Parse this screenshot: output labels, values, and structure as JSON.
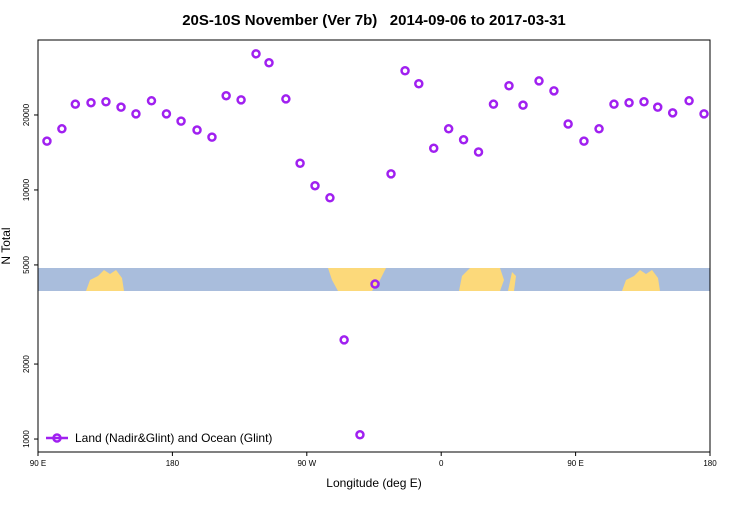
{
  "chart_data": {
    "type": "scatter",
    "title": "20S-10S November (Ver 7b)   2014-09-06 to 2017-03-31",
    "x_label": "Longitude (deg E)",
    "y_label": "N Total",
    "y_log": true,
    "xlim": [
      90,
      540
    ],
    "ylim": [
      887,
      40000
    ],
    "xticks": [
      {
        "value": 90,
        "label": "90 E"
      },
      {
        "value": 180,
        "label": "180"
      },
      {
        "value": 270,
        "label": "90 W"
      },
      {
        "value": 360,
        "label": "0"
      },
      {
        "value": 450,
        "label": "90 E"
      },
      {
        "value": 540,
        "label": "180"
      }
    ],
    "yticks": [
      1000,
      2000,
      5000,
      10000,
      20000
    ],
    "legend": "bottom-left",
    "series": [
      {
        "name": "Land (Nadir&Glint) and Ocean (Glint)",
        "color": "#a020f0",
        "x": [
          96,
          106,
          115,
          125.5,
          135.5,
          145.6,
          155.6,
          166,
          176,
          185.8,
          196.5,
          206.5,
          216,
          226,
          236,
          244.7,
          256,
          265.5,
          275.5,
          285.5,
          295,
          305.6,
          315.7,
          326.4,
          335.8,
          345,
          355,
          365,
          375,
          385,
          395,
          405.4,
          414.8,
          425.5,
          435.5,
          445,
          455.6,
          465.7,
          475.7,
          485.8,
          495.8,
          505,
          515,
          526,
          536
        ],
        "values": [
          15700,
          17600,
          22100,
          22400,
          22600,
          21500,
          20200,
          22800,
          20200,
          18900,
          17400,
          16300,
          23900,
          23000,
          35200,
          32400,
          23200,
          12800,
          10400,
          9300,
          2500,
          1040,
          4190,
          11600,
          30100,
          26700,
          14700,
          17600,
          15900,
          14200,
          22100,
          26200,
          21900,
          27400,
          25000,
          18400,
          15700,
          17600,
          22100,
          22400,
          22600,
          21500,
          20400,
          22800,
          20200
        ]
      }
    ]
  }
}
